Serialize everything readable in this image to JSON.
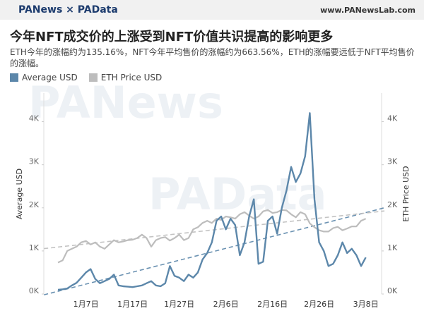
{
  "header": {
    "brand": "PANews × PAData",
    "site": "www.PANewsLab.com"
  },
  "chart_data": {
    "type": "line",
    "title": "今年NFT成交价的上涨受到NFT价值共识提高的影响更多",
    "subtitle": "ETH今年的涨幅约为135.16%，NFT今年平均售价的涨幅约为663.56%，ETH的涨幅要远低于NFT平均售价的涨幅。",
    "watermarks": [
      "PANews",
      "PAData"
    ],
    "ylabel": "Average USD",
    "y2label": "ETH Price USD",
    "categories": [
      null,
      null,
      null,
      null,
      null,
      null,
      "1月7日",
      null,
      null,
      null,
      null,
      null,
      null,
      null,
      null,
      null,
      "1月17日",
      null,
      null,
      null,
      null,
      null,
      null,
      null,
      null,
      null,
      "1月27日",
      null,
      null,
      null,
      null,
      null,
      null,
      null,
      null,
      null,
      "2月6日",
      null,
      null,
      null,
      null,
      null,
      null,
      null,
      null,
      null,
      "2月16日",
      null,
      null,
      null,
      null,
      null,
      null,
      null,
      null,
      null,
      "2月26日",
      null,
      null,
      null,
      null,
      null,
      null,
      null,
      null,
      null,
      "3月8日"
    ],
    "series": [
      {
        "name": "Average USD",
        "color": "#5c87aa",
        "axis": "y",
        "values": [
          100,
          110,
          130,
          200,
          260,
          380,
          500,
          580,
          350,
          250,
          300,
          350,
          450,
          200,
          180,
          170,
          160,
          180,
          200,
          250,
          300,
          200,
          180,
          250,
          650,
          420,
          380,
          300,
          450,
          380,
          500,
          800,
          950,
          1200,
          1700,
          1800,
          1500,
          1750,
          1600,
          900,
          1200,
          1800,
          2200,
          700,
          750,
          1700,
          1800,
          1400,
          2000,
          2400,
          2950,
          2600,
          2800,
          3200,
          4200,
          2200,
          1200,
          1000,
          650,
          700,
          900,
          1200,
          950,
          1050,
          900,
          650,
          850
        ]
      },
      {
        "name": "ETH Price USD",
        "color": "#bdbdbd",
        "axis": "y2",
        "values": [
          730,
          780,
          1000,
          1050,
          1100,
          1200,
          1230,
          1150,
          1200,
          1100,
          1050,
          1150,
          1250,
          1200,
          1220,
          1250,
          1260,
          1300,
          1380,
          1300,
          1100,
          1250,
          1300,
          1320,
          1240,
          1300,
          1380,
          1250,
          1300,
          1500,
          1550,
          1650,
          1700,
          1650,
          1750,
          1720,
          1800,
          1780,
          1750,
          1850,
          1900,
          1820,
          1750,
          1800,
          1920,
          1950,
          1880,
          1900,
          1950,
          1940,
          1850,
          1780,
          1900,
          1850,
          1640,
          1550,
          1480,
          1450,
          1450,
          1530,
          1560,
          1480,
          1520,
          1570,
          1570,
          1700,
          1750
        ]
      }
    ],
    "ylim": [
      0,
      4500
    ],
    "yticks": [
      {
        "value": 0,
        "label": "0K"
      },
      {
        "value": 1000,
        "label": "1K"
      },
      {
        "value": 2000,
        "label": "2K"
      },
      {
        "value": 3000,
        "label": "3K"
      },
      {
        "value": 4000,
        "label": "4K"
      }
    ],
    "y2lim": [
      0,
      4500
    ],
    "y2ticks": [
      {
        "value": 0,
        "label": "0K"
      },
      {
        "value": 1000,
        "label": "1K"
      },
      {
        "value": 2000,
        "label": "2K"
      },
      {
        "value": 3000,
        "label": "3K"
      },
      {
        "value": 4000,
        "label": "4K"
      }
    ],
    "trendlines": true,
    "grid": false,
    "legend": "top-left"
  }
}
